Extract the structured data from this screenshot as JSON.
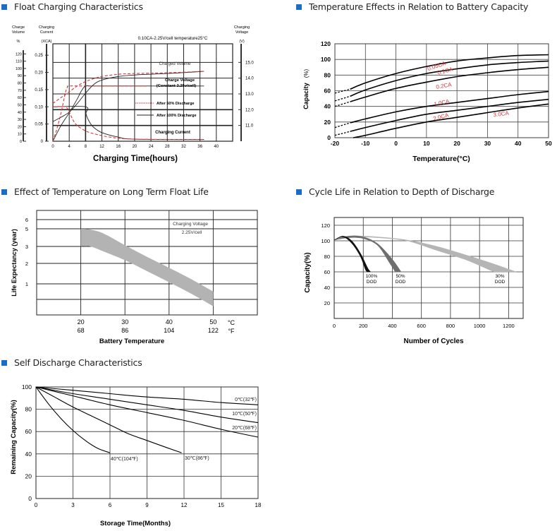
{
  "accent_color": "#1a6fc4",
  "chart_data": [
    {
      "id": "float-charging",
      "type": "line",
      "title": "Float Charging Characteristics",
      "subtitle": "0.10CA-2.25V/cell  temperature25°C",
      "xlabel": "Charging Time(hours)",
      "xlim": [
        0,
        44
      ],
      "xticks": [
        0,
        4,
        8,
        12,
        16,
        20,
        24,
        28,
        32,
        36,
        40
      ],
      "axes": {
        "charge_volume": {
          "label_lines": [
            "Charge",
            "Volume"
          ],
          "unit": "%",
          "range": [
            0,
            130
          ],
          "ticks": [
            0,
            10,
            20,
            30,
            40,
            50,
            60,
            70,
            80,
            90,
            100,
            110,
            120
          ]
        },
        "charging_current": {
          "label_lines": [
            "Charging",
            "Current"
          ],
          "unit": "(XCA)",
          "range": [
            0,
            0.275
          ],
          "ticks": [
            "0",
            "0.05",
            "0.10",
            "0.15",
            "0.20",
            "0.25"
          ]
        },
        "charging_voltage": {
          "label_lines": [
            "Charging",
            "Voltage"
          ],
          "unit": "(V)",
          "range": [
            10,
            16
          ],
          "ticks": [
            "11.0",
            "12.0",
            "13.0",
            "14.0",
            "15.0"
          ]
        }
      },
      "annotations": [
        "Charged Volume",
        "Charge Voltage",
        "(Constant 2.25v/cell)",
        "Charging Current"
      ],
      "legend": [
        {
          "name": "After 50% Discharge",
          "style": "dashed",
          "color": "#e0303a"
        },
        {
          "name": "After 100% Discharge",
          "style": "solid",
          "color": "#222222"
        }
      ],
      "series": [
        {
          "name": "Charged Volume (100% discharge)",
          "axis": "charge_volume",
          "x": [
            0,
            2,
            4,
            6,
            8,
            10,
            12,
            16,
            20,
            28,
            37
          ],
          "y": [
            27,
            33,
            40,
            52,
            66,
            78,
            84,
            89,
            91,
            93,
            96
          ]
        },
        {
          "name": "Charged Volume (50% discharge)",
          "axis": "charge_volume",
          "x": [
            0,
            2,
            4,
            6,
            8,
            10,
            12,
            16,
            20,
            28,
            37
          ],
          "y": [
            52,
            60,
            68,
            76,
            82,
            86,
            89,
            92,
            93,
            94,
            96
          ]
        },
        {
          "name": "Charge Voltage (100% discharge)",
          "axis": "charging_voltage",
          "x": [
            0,
            2,
            4,
            6,
            7,
            8,
            10,
            20,
            37
          ],
          "y": [
            10.0,
            11.0,
            11.8,
            12.7,
            13.2,
            13.5,
            13.5,
            13.5,
            13.5
          ]
        },
        {
          "name": "Charge Voltage (50% discharge)",
          "axis": "charging_voltage",
          "x": [
            0,
            1,
            2,
            3,
            3.5,
            4,
            8,
            23
          ],
          "y": [
            10.0,
            10.8,
            11.8,
            13.0,
            13.4,
            13.5,
            13.5,
            13.5
          ]
        },
        {
          "name": "Charging Current (100% discharge)",
          "axis": "charging_current",
          "x": [
            0,
            8,
            8.1,
            9,
            10,
            12,
            16,
            20,
            37
          ],
          "y": [
            0.1,
            0.1,
            0.08,
            0.055,
            0.04,
            0.025,
            0.012,
            0.006,
            0.005
          ]
        },
        {
          "name": "Charging Current (50% discharge)",
          "axis": "charging_current",
          "x": [
            0,
            3,
            4,
            5,
            6,
            8,
            10,
            14,
            20,
            37
          ],
          "y": [
            0.1,
            0.1,
            0.085,
            0.06,
            0.045,
            0.03,
            0.022,
            0.012,
            0.006,
            0.005
          ]
        }
      ]
    },
    {
      "id": "temperature-capacity",
      "type": "line",
      "title": "Temperature Effects in Relation to Battery Capacity",
      "xlabel": "Temperature(°C)",
      "ylabel": "Capacity",
      "ylabel_unit": "(%)",
      "xlim": [
        -20,
        50
      ],
      "ylim": [
        0,
        120
      ],
      "xticks": [
        -20,
        -10,
        0,
        10,
        20,
        30,
        40,
        50
      ],
      "yticks": [
        0,
        20,
        40,
        60,
        80,
        100,
        120
      ],
      "label_color": "#e0303a",
      "series": [
        {
          "name": "0.05CA",
          "x": [
            -20,
            -15,
            -10,
            0,
            10,
            20,
            30,
            40,
            50
          ],
          "y": [
            57,
            62,
            70,
            82,
            91,
            98,
            102,
            105,
            106
          ],
          "dashed_until": -15
        },
        {
          "name": "0.1CA",
          "x": [
            -20,
            -15,
            -10,
            0,
            10,
            20,
            30,
            40,
            50
          ],
          "y": [
            47,
            53,
            61,
            73,
            82,
            88,
            93,
            96,
            98
          ],
          "dashed_until": -15
        },
        {
          "name": "0.2CA",
          "x": [
            -20,
            -15,
            -10,
            0,
            10,
            20,
            30,
            40,
            50
          ],
          "y": [
            40,
            46,
            52,
            63,
            71,
            78,
            83,
            87,
            90
          ],
          "dashed_until": -15
        },
        {
          "name": "1.0CA",
          "x": [
            -20,
            -15,
            -10,
            0,
            10,
            20,
            30,
            40,
            50
          ],
          "y": [
            13,
            19,
            24,
            33,
            40,
            45,
            50,
            55,
            59
          ],
          "dashed_until": -15
        },
        {
          "name": "2.0CA",
          "x": [
            -20,
            -15,
            -10,
            0,
            10,
            20,
            30,
            40,
            50
          ],
          "y": [
            3,
            8,
            13,
            22,
            30,
            35,
            40,
            45,
            49
          ],
          "dashed_until": -15
        },
        {
          "name": "3.0CA",
          "x": [
            -14,
            -10,
            0,
            10,
            20,
            30,
            40,
            50
          ],
          "y": [
            0,
            3,
            12,
            20,
            26,
            32,
            38,
            43
          ],
          "dashed_until": null
        }
      ]
    },
    {
      "id": "float-life",
      "type": "area",
      "title": "Effect of Temperature on Long Term Float Life",
      "xlabel": "Battery Temperature",
      "ylabel": "Life Expectancy (year)",
      "xlim_c": [
        10,
        60
      ],
      "xticks_c": [
        "20",
        "30",
        "40",
        "50"
      ],
      "xticks_f": [
        "68",
        "86",
        "104",
        "122"
      ],
      "unit_c": "°C",
      "unit_f": "°F",
      "yticks": [
        "1",
        "2",
        "3",
        "5",
        "6"
      ],
      "annotation": [
        "Charging Voltage",
        "2.25V/cell"
      ],
      "band": {
        "x_c": [
          20,
          22,
          25,
          30,
          35,
          40,
          45,
          50
        ],
        "upper_years": [
          5.0,
          4.9,
          4.4,
          3.1,
          2.2,
          1.6,
          1.15,
          0.8
        ],
        "lower_years": [
          3.0,
          3.0,
          2.6,
          2.0,
          1.45,
          1.05,
          0.75,
          0.52
        ]
      },
      "band_color": "#b3b3b3"
    },
    {
      "id": "cycle-life",
      "type": "area",
      "title": "Cycle Life in Relation to Depth of Discharge",
      "xlabel": "Number of Cycles",
      "ylabel": "Capacity(%)",
      "xlim": [
        0,
        1300
      ],
      "ylim": [
        0,
        130
      ],
      "xticks": [
        0,
        200,
        400,
        600,
        800,
        1000,
        1200
      ],
      "yticks": [
        20,
        40,
        60,
        80,
        100,
        120
      ],
      "series": [
        {
          "name": "100% DOD",
          "label_lines": [
            "100%",
            "DOD"
          ],
          "color": "#111111",
          "upper": {
            "x": [
              0,
              60,
              120,
              180,
              230,
              250
            ],
            "y": [
              101,
              106,
              100,
              84,
              65,
              60
            ]
          },
          "lower": {
            "x": [
              0,
              60,
              120,
              180,
              215,
              230
            ],
            "y": [
              101,
              105,
              97,
              80,
              63,
              60
            ]
          }
        },
        {
          "name": "50% DOD",
          "label_lines": [
            "50%",
            "DOD"
          ],
          "color": "#6e6e6e",
          "upper": {
            "x": [
              0,
              100,
              200,
              300,
              400,
              460
            ],
            "y": [
              101,
              106,
              105,
              96,
              76,
              60
            ]
          },
          "lower": {
            "x": [
              0,
              100,
              200,
              300,
              380,
              420
            ],
            "y": [
              101,
              104,
              103,
              94,
              72,
              60
            ]
          }
        },
        {
          "name": "30% DOD",
          "label_lines": [
            "30%",
            "DOD"
          ],
          "color": "#b5b5b5",
          "upper": {
            "x": [
              0,
              100,
              300,
              500,
              700,
              900,
              1100,
              1250
            ],
            "y": [
              101,
              106,
              105,
              101,
              93,
              82,
              70,
              60
            ]
          },
          "lower": {
            "x": [
              0,
              100,
              300,
              500,
              700,
              900,
              1050,
              1100
            ],
            "y": [
              101,
              105,
              104,
              100,
              88,
              76,
              64,
              60
            ]
          }
        }
      ]
    },
    {
      "id": "self-discharge",
      "type": "line",
      "title": "Self Discharge Characteristics",
      "xlabel": "Storage Time(Months)",
      "ylabel": "Remaining Capacity(%)",
      "xlim": [
        0,
        18
      ],
      "ylim": [
        0,
        100
      ],
      "xticks": [
        0,
        3,
        6,
        9,
        12,
        15,
        18
      ],
      "yticks": [
        0,
        20,
        40,
        60,
        80,
        100
      ],
      "series": [
        {
          "name": "0℃(32℉)",
          "x": [
            0,
            3,
            6,
            9,
            12,
            15,
            18
          ],
          "y": [
            100,
            97,
            94,
            91,
            89,
            86,
            84
          ]
        },
        {
          "name": "10℃(50℉)",
          "x": [
            0,
            3,
            6,
            9,
            12,
            15,
            18
          ],
          "y": [
            100,
            94,
            89,
            84,
            79,
            73,
            68
          ]
        },
        {
          "name": "20℃(68℉)",
          "x": [
            0,
            3,
            6,
            9,
            12,
            15,
            18
          ],
          "y": [
            100,
            92,
            84,
            77,
            70,
            62,
            55
          ]
        },
        {
          "name": "30℃(86℉)",
          "x": [
            0,
            1.5,
            3,
            4.5,
            6,
            7.5,
            9,
            10.5,
            11.8
          ],
          "y": [
            100,
            91,
            82,
            74,
            66,
            58,
            52,
            46,
            41
          ]
        },
        {
          "name": "40℃(104℉)",
          "x": [
            0,
            1,
            2,
            3,
            4,
            5,
            6
          ],
          "y": [
            100,
            85,
            72,
            61,
            52,
            45,
            41
          ]
        }
      ]
    }
  ]
}
